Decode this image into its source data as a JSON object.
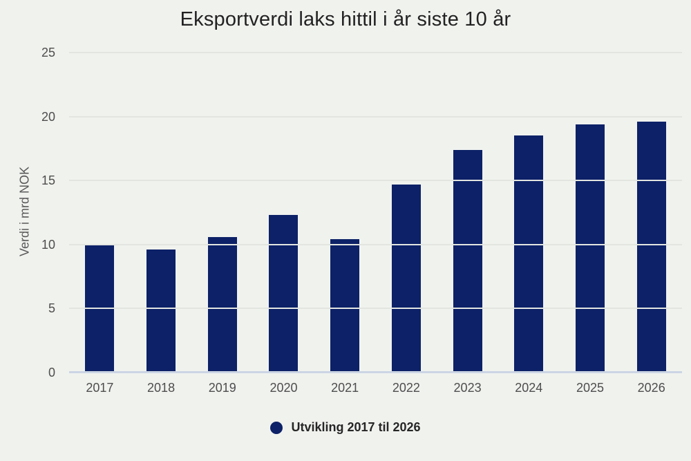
{
  "chart_data": {
    "type": "bar",
    "title": "Eksportverdi laks hittil i år siste 10 år",
    "xlabel": "",
    "ylabel": "Verdi i mrd NOK",
    "categories": [
      "2017",
      "2018",
      "2019",
      "2020",
      "2021",
      "2022",
      "2023",
      "2024",
      "2025",
      "2026"
    ],
    "values": [
      10.0,
      9.6,
      10.6,
      12.3,
      10.4,
      14.7,
      17.4,
      18.5,
      19.4,
      19.6
    ],
    "ylim": [
      0,
      25
    ],
    "yticks": [
      0,
      5,
      10,
      15,
      20,
      25
    ],
    "grid": "horizontal",
    "legend": {
      "label": "Utvikling 2017 til 2026",
      "position": "bottom"
    },
    "colors": {
      "bar": "#0c2167",
      "background": "#f0f2ee",
      "gridline": "#e3e5e1",
      "baseline": "#ccd5e4",
      "tick_label": "#4d4d4d",
      "title": "#222222",
      "legend_text": "#262626"
    }
  }
}
